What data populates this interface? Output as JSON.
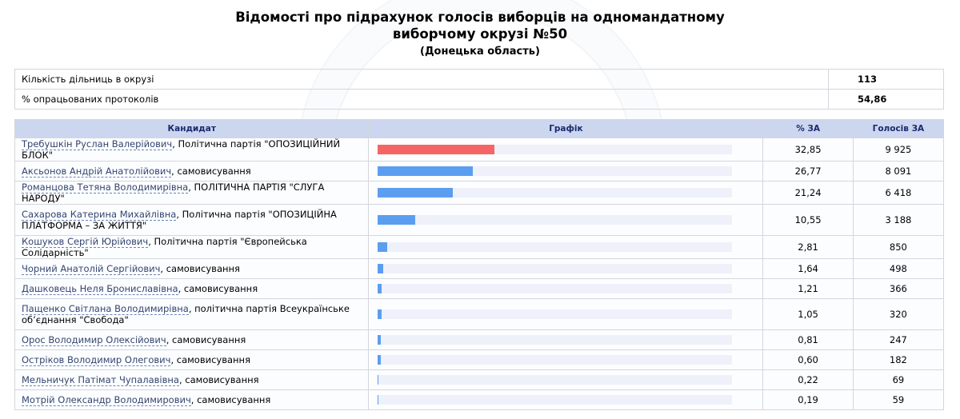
{
  "page": {
    "title_line1": "Відомості про підрахунок голосів виборців на одномандатному",
    "title_line2": "виборчому окрузі №50",
    "region": "(Донецька область)"
  },
  "summary": [
    {
      "label": "Кількість дільниць в окрузі",
      "value": "113"
    },
    {
      "label": "% опрацьованих протоколів",
      "value": "54,86"
    }
  ],
  "table": {
    "headers": {
      "candidate": "Кандидат",
      "chart": "Графік",
      "percent": "% ЗА",
      "votes": "Голосів ЗА"
    },
    "rows": [
      {
        "name": "Требушкін Руслан Валерійович",
        "party": ", Політична партія \"ОПОЗИЦІЙНИЙ БЛОК\"",
        "percent": "32,85",
        "votes": "9 925",
        "share": 32.85
      },
      {
        "name": "Аксьонов Андрій Анатолійович",
        "party": ", самовисування",
        "percent": "26,77",
        "votes": "8 091",
        "share": 26.77
      },
      {
        "name": "Романцова Тетяна Володимирівна",
        "party": ", ПОЛІТИЧНА ПАРТІЯ \"СЛУГА НАРОДУ\"",
        "percent": "21,24",
        "votes": "6 418",
        "share": 21.24
      },
      {
        "name": "Сахарова Катерина Михайлівна",
        "party": ", Політична партія \"ОПОЗИЦІЙНА ПЛАТФОРМА – ЗА ЖИТТЯ\"",
        "percent": "10,55",
        "votes": "3 188",
        "share": 10.55
      },
      {
        "name": "Кошуков Сергій Юрійович",
        "party": ", Політична партія \"Європейська Солідарність\"",
        "percent": "2,81",
        "votes": "850",
        "share": 2.81
      },
      {
        "name": "Чорний Анатолій Сергійович",
        "party": ", самовисування",
        "percent": "1,64",
        "votes": "498",
        "share": 1.64
      },
      {
        "name": "Дашковець Неля Брониславівна",
        "party": ", самовисування",
        "percent": "1,21",
        "votes": "366",
        "share": 1.21
      },
      {
        "name": "Пащенко Світлана Володимирівна",
        "party": ", політична партія Всеукраїнське об’єднання \"Свобода\"",
        "percent": "1,05",
        "votes": "320",
        "share": 1.05
      },
      {
        "name": "Орос Володимир Олексійович",
        "party": ", самовисування",
        "percent": "0,81",
        "votes": "247",
        "share": 0.81
      },
      {
        "name": "Остріков Володимир Олегович",
        "party": ", самовисування",
        "percent": "0,60",
        "votes": "182",
        "share": 0.6
      },
      {
        "name": "Мельничук Патімат Чупалавівна",
        "party": ", самовисування",
        "percent": "0,22",
        "votes": "69",
        "share": 0.22
      },
      {
        "name": "Мотрій Олександр Володимирович",
        "party": ", самовисування",
        "percent": "0,19",
        "votes": "59",
        "share": 0.19
      }
    ]
  },
  "colors": {
    "leader_bar": "#f56565",
    "bar": "#5b9ef0",
    "header_bg": "#ccd6ef"
  }
}
